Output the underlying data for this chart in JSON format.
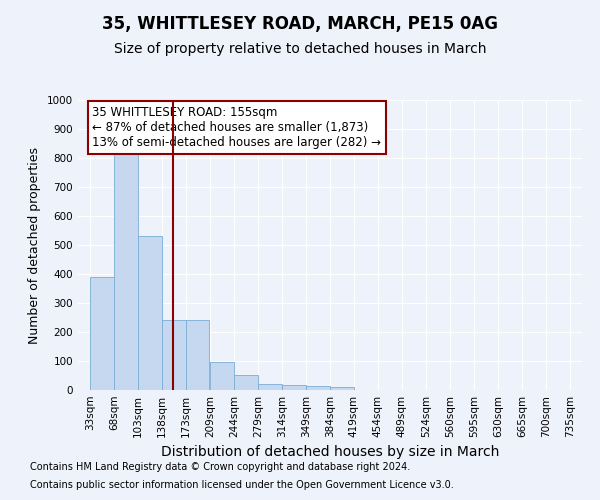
{
  "title": "35, WHITTLESEY ROAD, MARCH, PE15 0AG",
  "subtitle": "Size of property relative to detached houses in March",
  "xlabel": "Distribution of detached houses by size in March",
  "ylabel": "Number of detached properties",
  "bar_color": "#c5d8f0",
  "bar_edge_color": "#7aadd4",
  "background_color": "#eef2fa",
  "grid_color": "#ffffff",
  "vline_x": 155,
  "vline_color": "#8b0000",
  "bin_edges": [
    33,
    68,
    103,
    138,
    173,
    209,
    244,
    279,
    314,
    349,
    384,
    419,
    454,
    489,
    524,
    560,
    595,
    630,
    665,
    700,
    735
  ],
  "bar_heights": [
    390,
    830,
    530,
    240,
    240,
    97,
    52,
    22,
    18,
    14,
    10,
    0,
    0,
    0,
    0,
    0,
    0,
    0,
    0,
    0
  ],
  "ylim": [
    0,
    1000
  ],
  "yticks": [
    0,
    100,
    200,
    300,
    400,
    500,
    600,
    700,
    800,
    900,
    1000
  ],
  "annotation_text": "35 WHITTLESEY ROAD: 155sqm\n← 87% of detached houses are smaller (1,873)\n13% of semi-detached houses are larger (282) →",
  "annotation_box_color": "#ffffff",
  "annotation_box_edgecolor": "#8b0000",
  "footnote1": "Contains HM Land Registry data © Crown copyright and database right 2024.",
  "footnote2": "Contains public sector information licensed under the Open Government Licence v3.0.",
  "title_fontsize": 12,
  "subtitle_fontsize": 10,
  "xlabel_fontsize": 10,
  "ylabel_fontsize": 9,
  "tick_fontsize": 7.5,
  "annotation_fontsize": 8.5,
  "footnote_fontsize": 7
}
